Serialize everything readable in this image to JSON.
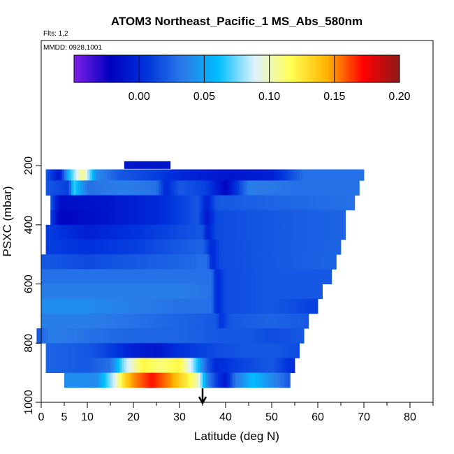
{
  "chart_data": {
    "type": "heatmap",
    "title": "ATOM3 Northeast_Pacific_1 MS_Abs_580nm",
    "annotations": [
      "Flts: 1,2",
      "MMDD: 0928,1001"
    ],
    "xlabel": "Latitude (deg N)",
    "ylabel": "PSXC (mbar)",
    "xlim": [
      0,
      85
    ],
    "ylim": [
      1000,
      0
    ],
    "x_ticks_major": [
      0,
      10,
      20,
      30,
      40,
      50,
      60,
      70,
      80
    ],
    "x_ticks_minor": [
      5,
      15,
      25,
      35,
      45,
      55,
      65,
      75,
      85
    ],
    "x_tick_labels": [
      "0",
      "5",
      "10",
      "20",
      "30",
      "40",
      "50",
      "60",
      "70",
      "80"
    ],
    "x_tick_label_values": [
      0,
      5,
      10,
      20,
      30,
      40,
      50,
      60,
      70,
      80
    ],
    "y_ticks": [
      200,
      400,
      600,
      800,
      1000
    ],
    "y_tick_labels": [
      "200",
      "400",
      "600",
      "800",
      "1000"
    ],
    "colorbar": {
      "range": [
        -0.05,
        0.2
      ],
      "ticks": [
        0.0,
        0.05,
        0.1,
        0.15,
        0.2
      ],
      "tick_labels": [
        "0.00",
        "0.05",
        "0.10",
        "0.15",
        "0.20"
      ],
      "colors": [
        "#7f1fe8",
        "#0000c0",
        "#0033dd",
        "#2a7ae8",
        "#00bfff",
        "#e0f2ff",
        "#ffff50",
        "#ffb400",
        "#ff0000",
        "#8b1a1a"
      ]
    },
    "arrow_latitude": 35,
    "layers": [
      {
        "p": 200,
        "lat_min": 18,
        "lat_max": 28,
        "cells": [
          [
            18,
            -0.01
          ],
          [
            28,
            -0.01
          ]
        ]
      },
      {
        "p": 225,
        "lat_min": 1,
        "lat_max": 70,
        "cells": [
          [
            1,
            0.02
          ],
          [
            4,
            -0.01
          ],
          [
            6,
            0.06
          ],
          [
            9,
            0.11
          ],
          [
            12,
            0.04
          ],
          [
            17,
            0.02
          ],
          [
            25,
            0.01
          ],
          [
            30,
            0.0
          ],
          [
            40,
            -0.01
          ],
          [
            50,
            -0.005
          ],
          [
            57,
            0.03
          ],
          [
            65,
            0.03
          ],
          [
            70,
            0.03
          ]
        ]
      },
      {
        "p": 275,
        "lat_min": 1,
        "lat_max": 69,
        "cells": [
          [
            1,
            0.02
          ],
          [
            6,
            0.01
          ],
          [
            7,
            0.07
          ],
          [
            10,
            0.03
          ],
          [
            18,
            0.035
          ],
          [
            25,
            0.03
          ],
          [
            27,
            0.0
          ],
          [
            30,
            0.02
          ],
          [
            36,
            0.01
          ],
          [
            40,
            -0.02
          ],
          [
            45,
            0.035
          ],
          [
            55,
            0.03
          ],
          [
            69,
            0.03
          ]
        ]
      },
      {
        "p": 325,
        "lat_min": 2,
        "lat_max": 68,
        "cells": [
          [
            2,
            0.02
          ],
          [
            4,
            -0.015
          ],
          [
            15,
            -0.01
          ],
          [
            25,
            0.0
          ],
          [
            30,
            0.01
          ],
          [
            34,
            0.02
          ],
          [
            36,
            -0.005
          ],
          [
            38,
            0.02
          ],
          [
            50,
            0.025
          ],
          [
            68,
            0.03
          ]
        ]
      },
      {
        "p": 375,
        "lat_min": 2,
        "lat_max": 66,
        "cells": [
          [
            2,
            0.01
          ],
          [
            4,
            -0.02
          ],
          [
            15,
            -0.01
          ],
          [
            25,
            0.0
          ],
          [
            30,
            0.01
          ],
          [
            34,
            0.02
          ],
          [
            36,
            -0.01
          ],
          [
            38,
            0.015
          ],
          [
            50,
            0.02
          ],
          [
            66,
            0.025
          ]
        ]
      },
      {
        "p": 425,
        "lat_min": 1,
        "lat_max": 66,
        "cells": [
          [
            1,
            0.01
          ],
          [
            10,
            -0.005
          ],
          [
            20,
            0.005
          ],
          [
            30,
            0.015
          ],
          [
            35,
            0.02
          ],
          [
            36,
            -0.005
          ],
          [
            38,
            0.015
          ],
          [
            50,
            0.02
          ],
          [
            66,
            0.025
          ]
        ]
      },
      {
        "p": 475,
        "lat_min": 1,
        "lat_max": 65,
        "cells": [
          [
            1,
            0.01
          ],
          [
            10,
            0.005
          ],
          [
            20,
            0.01
          ],
          [
            30,
            0.02
          ],
          [
            35,
            0.025
          ],
          [
            37,
            0.0
          ],
          [
            39,
            0.015
          ],
          [
            50,
            0.02
          ],
          [
            65,
            0.025
          ]
        ]
      },
      {
        "p": 525,
        "lat_min": 0,
        "lat_max": 64,
        "cells": [
          [
            0,
            0.02
          ],
          [
            10,
            0.015
          ],
          [
            20,
            0.02
          ],
          [
            30,
            0.025
          ],
          [
            36,
            0.03
          ],
          [
            37,
            0.0
          ],
          [
            39,
            0.015
          ],
          [
            50,
            0.02
          ],
          [
            64,
            0.025
          ]
        ]
      },
      {
        "p": 575,
        "lat_min": 0,
        "lat_max": 63,
        "cells": [
          [
            0,
            0.03
          ],
          [
            10,
            0.03
          ],
          [
            20,
            0.03
          ],
          [
            30,
            0.03
          ],
          [
            37,
            0.03
          ],
          [
            38,
            0.0
          ],
          [
            40,
            0.015
          ],
          [
            50,
            0.02
          ],
          [
            63,
            0.02
          ]
        ]
      },
      {
        "p": 625,
        "lat_min": 0,
        "lat_max": 61,
        "cells": [
          [
            0,
            0.035
          ],
          [
            10,
            0.035
          ],
          [
            20,
            0.035
          ],
          [
            30,
            0.035
          ],
          [
            37,
            0.03
          ],
          [
            38,
            0.0
          ],
          [
            40,
            0.015
          ],
          [
            50,
            0.02
          ],
          [
            61,
            0.02
          ]
        ]
      },
      {
        "p": 675,
        "lat_min": 0,
        "lat_max": 60,
        "cells": [
          [
            0,
            0.04
          ],
          [
            10,
            0.04
          ],
          [
            20,
            0.035
          ],
          [
            30,
            0.03
          ],
          [
            37,
            0.03
          ],
          [
            38,
            0.0
          ],
          [
            40,
            0.015
          ],
          [
            50,
            0.02
          ],
          [
            55,
            0.015
          ],
          [
            60,
            0.01
          ]
        ]
      },
      {
        "p": 725,
        "lat_min": 0,
        "lat_max": 58,
        "cells": [
          [
            0,
            0.035
          ],
          [
            10,
            0.035
          ],
          [
            20,
            0.03
          ],
          [
            30,
            0.025
          ],
          [
            38,
            0.02
          ],
          [
            39,
            0.005
          ],
          [
            41,
            0.02
          ],
          [
            50,
            0.025
          ],
          [
            58,
            0.02
          ]
        ]
      },
      {
        "p": 775,
        "lat_min": -1,
        "lat_max": 57,
        "cells": [
          [
            -1,
            0.02
          ],
          [
            2,
            0.035
          ],
          [
            10,
            0.03
          ],
          [
            20,
            0.025
          ],
          [
            30,
            0.025
          ],
          [
            38,
            0.02
          ],
          [
            45,
            0.02
          ],
          [
            50,
            0.015
          ],
          [
            57,
            0.02
          ]
        ]
      },
      {
        "p": 825,
        "lat_min": 1,
        "lat_max": 56,
        "cells": [
          [
            1,
            0.025
          ],
          [
            10,
            0.02
          ],
          [
            15,
            0.01
          ],
          [
            20,
            -0.005
          ],
          [
            25,
            -0.01
          ],
          [
            30,
            0.005
          ],
          [
            38,
            0.015
          ],
          [
            45,
            0.02
          ],
          [
            50,
            0.02
          ],
          [
            56,
            0.015
          ]
        ]
      },
      {
        "p": 875,
        "lat_min": 1,
        "lat_max": 55,
        "cells": [
          [
            1,
            0.025
          ],
          [
            10,
            0.02
          ],
          [
            15,
            0.03
          ],
          [
            18,
            0.08
          ],
          [
            22,
            0.12
          ],
          [
            26,
            0.11
          ],
          [
            30,
            0.12
          ],
          [
            33,
            0.08
          ],
          [
            36,
            0.02
          ],
          [
            38,
            0.0
          ],
          [
            42,
            0.01
          ],
          [
            50,
            0.02
          ],
          [
            55,
            0.0
          ]
        ]
      },
      {
        "p": 925,
        "lat_min": 5,
        "lat_max": 54,
        "cells": [
          [
            5,
            0.04
          ],
          [
            12,
            0.04
          ],
          [
            16,
            0.09
          ],
          [
            18,
            0.13
          ],
          [
            20,
            0.15
          ],
          [
            24,
            0.17
          ],
          [
            28,
            0.15
          ],
          [
            32,
            0.12
          ],
          [
            34,
            0.1
          ],
          [
            36,
            0.04
          ],
          [
            38,
            0.01
          ],
          [
            40,
            -0.01
          ],
          [
            42,
            0.03
          ],
          [
            46,
            0.06
          ],
          [
            50,
            0.04
          ],
          [
            54,
            0.02
          ]
        ]
      }
    ]
  }
}
